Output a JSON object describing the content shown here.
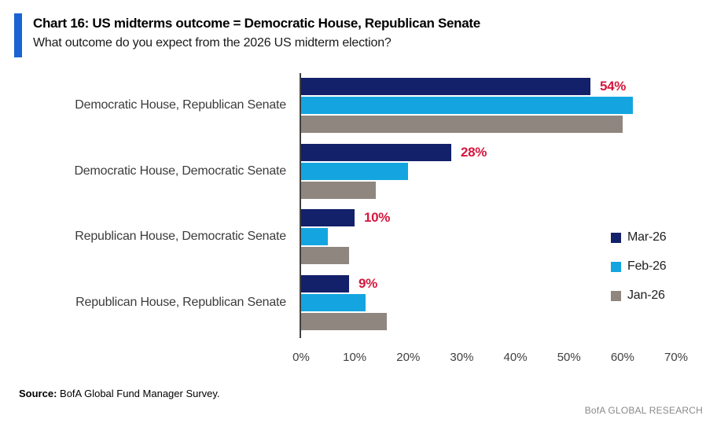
{
  "header": {
    "title": "Chart 16: US midterms outcome = Democratic House, Republican Senate",
    "subtitle": "What outcome do you expect from the 2026 US midterm election?",
    "accent_color": "#1b63d2"
  },
  "chart_data": {
    "type": "bar",
    "orientation": "horizontal",
    "title": "Chart 16: US midterms outcome = Democratic House, Republican Senate",
    "subtitle": "What outcome do you expect from the 2026 US midterm election?",
    "categories": [
      "Democratic House, Republican Senate",
      "Democratic House, Democratic Senate",
      "Republican House, Democratic Senate",
      "Republican House, Republican Senate"
    ],
    "series": [
      {
        "name": "Mar-26",
        "color": "#13206a",
        "values": [
          54,
          28,
          10,
          9
        ]
      },
      {
        "name": "Feb-26",
        "color": "#14a5e0",
        "values": [
          62,
          20,
          5,
          12
        ]
      },
      {
        "name": "Jan-26",
        "color": "#8f8680",
        "values": [
          60,
          14,
          9,
          16
        ]
      }
    ],
    "data_labels": {
      "series": "Mar-26",
      "texts": [
        "54%",
        "28%",
        "10%",
        "9%"
      ],
      "color": "#d5173c"
    },
    "xlim": [
      0,
      70
    ],
    "x_ticks": [
      "0%",
      "10%",
      "20%",
      "30%",
      "40%",
      "50%",
      "60%",
      "70%"
    ],
    "grid": false,
    "legend_position": "right"
  },
  "footer": {
    "source_label": "Source:",
    "source_text": " BofA Global Fund Manager Survey.",
    "brand": "BofA GLOBAL RESEARCH"
  }
}
